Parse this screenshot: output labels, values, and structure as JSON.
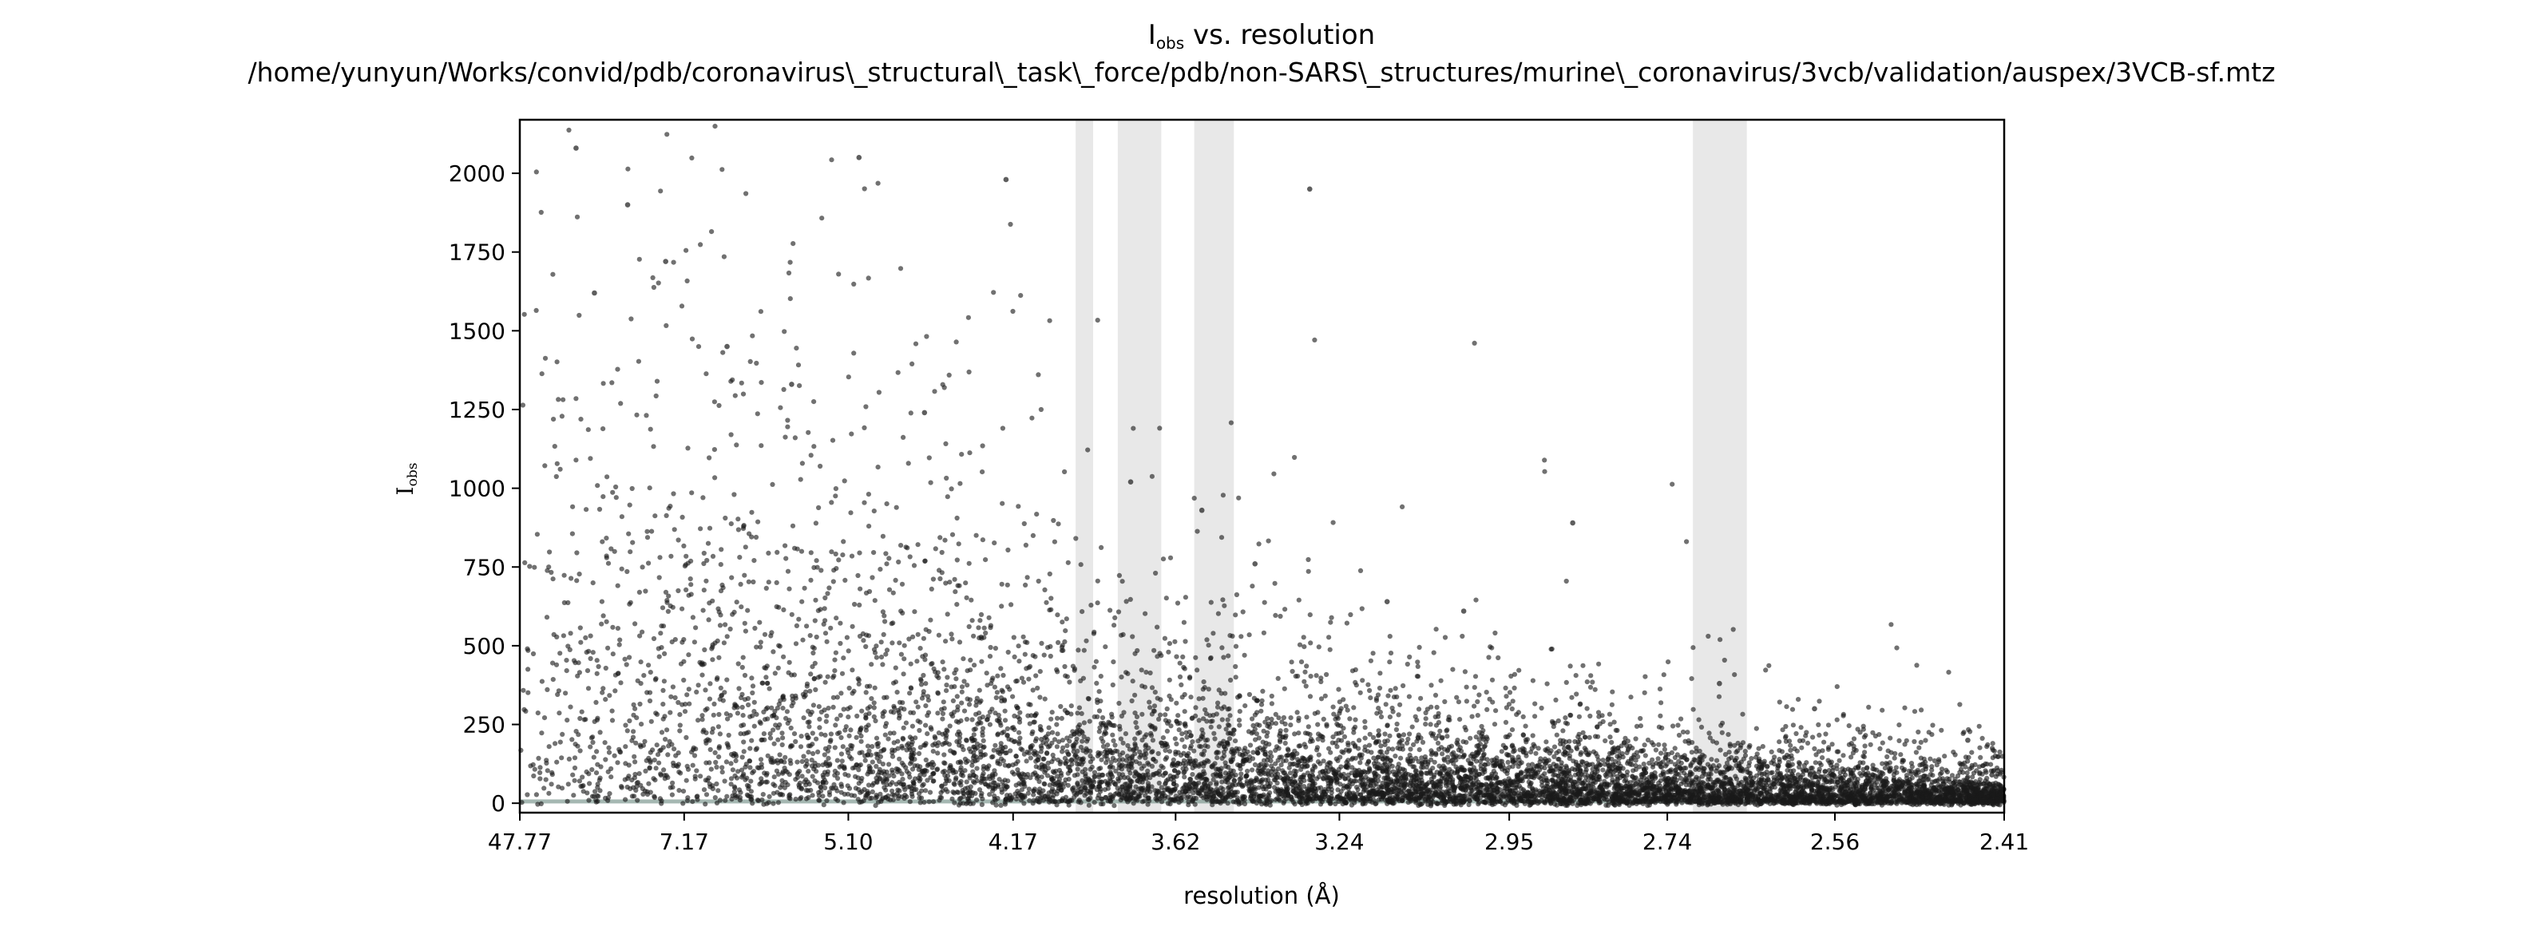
{
  "chart_data": {
    "type": "scatter",
    "title": "I",
    "title_sub": "obs",
    "title_rest": " vs. resolution",
    "subtitle": "/home/yunyun/Works/convid/pdb/coronavirus\\_structural\\_task\\_force/pdb/non-SARS\\_structures/murine\\_coronavirus/3vcb/validation/auspex/3VCB-sf.mtz",
    "xlabel": "resolution (Å)",
    "ylabel": "I",
    "ylabel_sub": "obs",
    "x_scale": "1/d^2",
    "xlim": [
      47.77,
      2.41
    ],
    "ylim": [
      -30,
      2170
    ],
    "x_ticks": [
      47.77,
      7.17,
      5.1,
      4.17,
      3.62,
      3.24,
      2.95,
      2.74,
      2.56,
      2.41
    ],
    "x_tick_labels": [
      "47.77",
      "7.17",
      "5.10",
      "4.17",
      "3.62",
      "3.24",
      "2.95",
      "2.74",
      "2.56",
      "2.41"
    ],
    "y_ticks": [
      0,
      250,
      500,
      750,
      1000,
      1250,
      1500,
      1750,
      2000
    ],
    "y_tick_labels": [
      "0",
      "250",
      "500",
      "750",
      "1000",
      "1250",
      "1500",
      "1750",
      "2000"
    ],
    "ice_ring_bands": [
      [
        3.93,
        3.87
      ],
      [
        3.79,
        3.66
      ],
      [
        3.57,
        3.47
      ],
      [
        2.71,
        2.65
      ]
    ],
    "grid": false,
    "point_color": "#1a1a1a",
    "band_color": "#e8e8e8",
    "baseline_color": "#7f9a92",
    "sample_points": [
      [
        12.0,
        2080
      ],
      [
        10.5,
        1620
      ],
      [
        8.8,
        1900
      ],
      [
        7.6,
        1720
      ],
      [
        6.4,
        1450
      ],
      [
        5.6,
        1330
      ],
      [
        5.02,
        2050
      ],
      [
        4.6,
        1240
      ],
      [
        4.2,
        1980
      ],
      [
        3.75,
        1020
      ],
      [
        3.55,
        930
      ],
      [
        3.42,
        760
      ],
      [
        3.3,
        1950
      ],
      [
        3.15,
        640
      ],
      [
        3.02,
        610
      ],
      [
        2.86,
        890
      ],
      [
        2.68,
        380
      ],
      [
        2.58,
        300
      ],
      [
        2.44,
        200
      ],
      [
        2.42,
        90
      ]
    ]
  }
}
